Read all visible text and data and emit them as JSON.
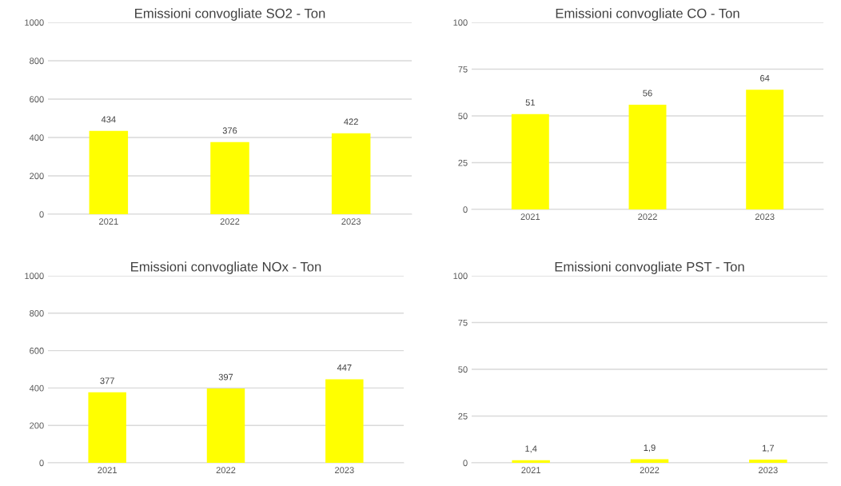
{
  "chart_data": [
    {
      "type": "bar",
      "title": "Emissioni convogliate SO2 - Ton",
      "categories": [
        "2021",
        "2022",
        "2023"
      ],
      "values": [
        434,
        376,
        422
      ],
      "value_labels": [
        "434",
        "376",
        "422"
      ],
      "color": "#ffff00",
      "ylim": [
        0,
        1000
      ],
      "yticks": [
        0,
        200,
        400,
        600,
        800,
        1000
      ],
      "grid": "y"
    },
    {
      "type": "bar",
      "title": "Emissioni convogliate CO - Ton",
      "categories": [
        "2021",
        "2022",
        "2023"
      ],
      "values": [
        51,
        56,
        64
      ],
      "value_labels": [
        "51",
        "56",
        "64"
      ],
      "color": "#ffff00",
      "ylim": [
        0,
        100
      ],
      "yticks": [
        0,
        25,
        50,
        75,
        100
      ],
      "grid": "y"
    },
    {
      "type": "bar",
      "title": "Emissioni convogliate NOx - Ton",
      "categories": [
        "2021",
        "2022",
        "2023"
      ],
      "values": [
        377,
        397,
        447
      ],
      "value_labels": [
        "377",
        "397",
        "447"
      ],
      "color": "#ffff00",
      "ylim": [
        0,
        1000
      ],
      "yticks": [
        0,
        200,
        400,
        600,
        800,
        1000
      ],
      "grid": "y"
    },
    {
      "type": "bar",
      "title": "Emissioni convogliate PST - Ton",
      "categories": [
        "2021",
        "2022",
        "2023"
      ],
      "values": [
        1.4,
        1.9,
        1.7
      ],
      "value_labels": [
        "1,4",
        "1,9",
        "1,7"
      ],
      "color": "#ffff00",
      "ylim": [
        0,
        100
      ],
      "yticks": [
        0,
        25,
        50,
        75,
        100
      ],
      "grid": "y"
    }
  ]
}
